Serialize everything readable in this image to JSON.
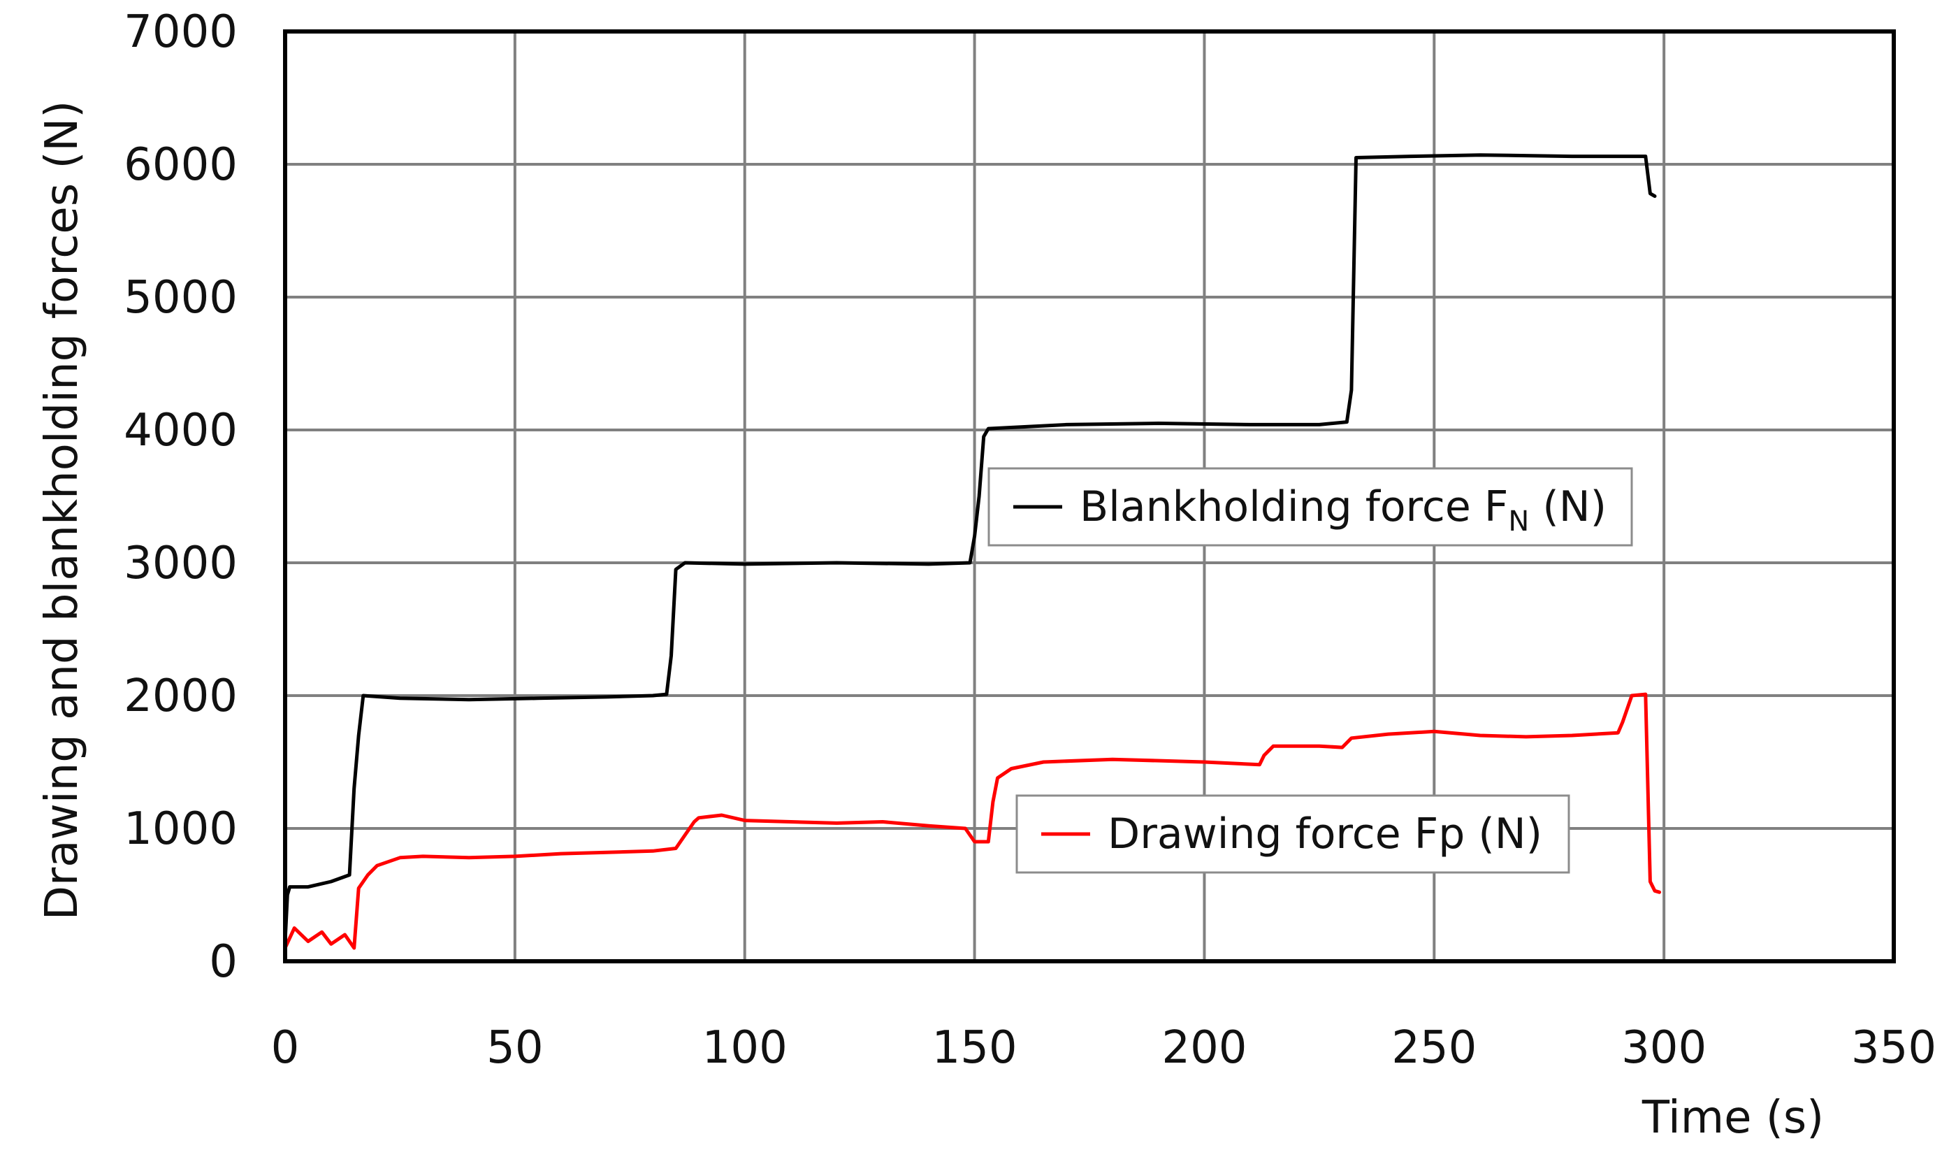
{
  "chart_data": {
    "type": "line",
    "title": "",
    "xlabel": "Time (s)",
    "ylabel": "Drawing and blankholding forces (N)",
    "xlim": [
      0,
      350
    ],
    "ylim": [
      0,
      7000
    ],
    "x_ticks": [
      0,
      50,
      100,
      150,
      200,
      250,
      300,
      350
    ],
    "y_ticks": [
      0,
      1000,
      2000,
      3000,
      4000,
      5000,
      6000,
      7000
    ],
    "grid": true,
    "series": [
      {
        "name_parts": {
          "main": "Blankholding force F",
          "sub": "N",
          "suffix": " (N)"
        },
        "color": "#000000",
        "legend_position": "center-right",
        "points": [
          [
            0,
            150
          ],
          [
            0.5,
            500
          ],
          [
            1,
            560
          ],
          [
            5,
            560
          ],
          [
            10,
            600
          ],
          [
            14,
            650
          ],
          [
            15,
            1300
          ],
          [
            16,
            1700
          ],
          [
            17,
            2000
          ],
          [
            25,
            1980
          ],
          [
            40,
            1970
          ],
          [
            55,
            1980
          ],
          [
            70,
            1990
          ],
          [
            80,
            2000
          ],
          [
            83,
            2010
          ],
          [
            84,
            2300
          ],
          [
            85,
            2950
          ],
          [
            87,
            3000
          ],
          [
            100,
            2990
          ],
          [
            120,
            3000
          ],
          [
            140,
            2990
          ],
          [
            149,
            3000
          ],
          [
            150,
            3200
          ],
          [
            151,
            3500
          ],
          [
            152,
            3950
          ],
          [
            153,
            4010
          ],
          [
            170,
            4040
          ],
          [
            190,
            4050
          ],
          [
            210,
            4040
          ],
          [
            225,
            4040
          ],
          [
            231,
            4060
          ],
          [
            232,
            4300
          ],
          [
            233,
            6050
          ],
          [
            245,
            6060
          ],
          [
            260,
            6070
          ],
          [
            280,
            6060
          ],
          [
            296,
            6060
          ],
          [
            297,
            5780
          ],
          [
            298,
            5760
          ]
        ]
      },
      {
        "name": "Drawing force Fp (N)",
        "color": "#ff0000",
        "legend_position": "lower-right",
        "points": [
          [
            0,
            100
          ],
          [
            2,
            250
          ],
          [
            5,
            150
          ],
          [
            8,
            220
          ],
          [
            10,
            130
          ],
          [
            13,
            200
          ],
          [
            15,
            100
          ],
          [
            16,
            550
          ],
          [
            18,
            650
          ],
          [
            20,
            720
          ],
          [
            25,
            780
          ],
          [
            30,
            790
          ],
          [
            40,
            780
          ],
          [
            50,
            790
          ],
          [
            60,
            810
          ],
          [
            70,
            820
          ],
          [
            80,
            830
          ],
          [
            85,
            850
          ],
          [
            87,
            950
          ],
          [
            89,
            1050
          ],
          [
            90,
            1080
          ],
          [
            95,
            1100
          ],
          [
            100,
            1060
          ],
          [
            110,
            1050
          ],
          [
            120,
            1040
          ],
          [
            130,
            1050
          ],
          [
            140,
            1020
          ],
          [
            148,
            1000
          ],
          [
            149,
            950
          ],
          [
            150,
            900
          ],
          [
            153,
            900
          ],
          [
            154,
            1200
          ],
          [
            155,
            1380
          ],
          [
            158,
            1450
          ],
          [
            165,
            1500
          ],
          [
            180,
            1520
          ],
          [
            200,
            1500
          ],
          [
            212,
            1480
          ],
          [
            213,
            1550
          ],
          [
            215,
            1620
          ],
          [
            225,
            1620
          ],
          [
            230,
            1610
          ],
          [
            232,
            1680
          ],
          [
            240,
            1710
          ],
          [
            250,
            1730
          ],
          [
            260,
            1700
          ],
          [
            270,
            1690
          ],
          [
            280,
            1700
          ],
          [
            290,
            1720
          ],
          [
            291,
            1800
          ],
          [
            293,
            2000
          ],
          [
            296,
            2010
          ],
          [
            297,
            600
          ],
          [
            298,
            530
          ],
          [
            299,
            520
          ]
        ]
      }
    ]
  }
}
